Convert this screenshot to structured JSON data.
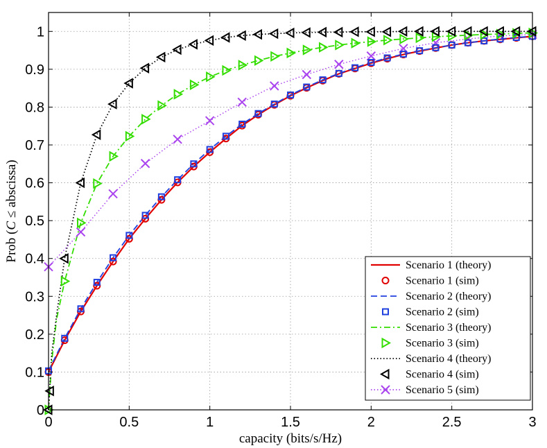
{
  "chart_data": {
    "type": "line",
    "title": "",
    "xlabel": "capacity (bits/s/Hz)",
    "ylabel_prefix": "Prob (",
    "ylabel_var": "C",
    "ylabel_suffix": " ≤ abscissa)",
    "xlim": [
      0,
      3
    ],
    "ylim": [
      0,
      1.05
    ],
    "xticks": [
      0,
      0.5,
      1,
      1.5,
      2,
      2.5,
      3
    ],
    "xtick_labels": [
      "0",
      "0.5",
      "1",
      "1.5",
      "2",
      "2.5",
      "3"
    ],
    "yticks": [
      0,
      0.1,
      0.2,
      0.3,
      0.4,
      0.5,
      0.6,
      0.7,
      0.8,
      0.9,
      1
    ],
    "ytick_labels": [
      "0",
      "0.1",
      "0.2",
      "0.3",
      "0.4",
      "0.5",
      "0.6",
      "0.7",
      "0.8",
      "0.9",
      "1"
    ],
    "grid": true,
    "legend_position": "bottom-right",
    "series": [
      {
        "name": "Scenario 1 (theory)",
        "color": "#e00000",
        "style": "solid",
        "marker": "none",
        "x": [
          0,
          0.1,
          0.2,
          0.3,
          0.4,
          0.5,
          0.6,
          0.7,
          0.8,
          0.9,
          1.0,
          1.1,
          1.2,
          1.3,
          1.4,
          1.5,
          1.6,
          1.7,
          1.8,
          1.9,
          2.0,
          2.1,
          2.2,
          2.3,
          2.4,
          2.5,
          2.6,
          2.7,
          2.8,
          2.9,
          3.0
        ],
        "y": [
          0.1,
          0.184,
          0.26,
          0.328,
          0.392,
          0.452,
          0.505,
          0.555,
          0.601,
          0.643,
          0.681,
          0.717,
          0.751,
          0.78,
          0.806,
          0.83,
          0.851,
          0.87,
          0.888,
          0.902,
          0.916,
          0.928,
          0.939,
          0.948,
          0.956,
          0.964,
          0.97,
          0.975,
          0.979,
          0.983,
          0.987
        ]
      },
      {
        "name": "Scenario 1 (sim)",
        "color": "#e00000",
        "style": "none",
        "marker": "circle",
        "x": [
          0,
          0.1,
          0.2,
          0.3,
          0.4,
          0.5,
          0.6,
          0.7,
          0.8,
          0.9,
          1.0,
          1.1,
          1.2,
          1.3,
          1.4,
          1.5,
          1.6,
          1.7,
          1.8,
          1.9,
          2.0,
          2.1,
          2.2,
          2.3,
          2.4,
          2.5,
          2.6,
          2.7,
          2.8,
          2.9,
          3.0
        ],
        "y": [
          0.1,
          0.184,
          0.26,
          0.328,
          0.392,
          0.452,
          0.505,
          0.555,
          0.601,
          0.643,
          0.681,
          0.717,
          0.751,
          0.78,
          0.806,
          0.83,
          0.851,
          0.87,
          0.888,
          0.902,
          0.916,
          0.928,
          0.939,
          0.948,
          0.956,
          0.964,
          0.97,
          0.975,
          0.979,
          0.983,
          0.987
        ]
      },
      {
        "name": "Scenario 2 (theory)",
        "color": "#1f3fdf",
        "style": "dashed",
        "marker": "none",
        "x": [
          0,
          0.1,
          0.2,
          0.3,
          0.4,
          0.5,
          0.6,
          0.7,
          0.8,
          0.9,
          1.0,
          1.1,
          1.2,
          1.3,
          1.4,
          1.5,
          1.6,
          1.7,
          1.8,
          1.9,
          2.0,
          2.1,
          2.2,
          2.3,
          2.4,
          2.5,
          2.6,
          2.7,
          2.8,
          2.9,
          3.0
        ],
        "y": [
          0.103,
          0.189,
          0.267,
          0.337,
          0.402,
          0.461,
          0.514,
          0.563,
          0.608,
          0.65,
          0.688,
          0.723,
          0.755,
          0.783,
          0.808,
          0.832,
          0.853,
          0.872,
          0.889,
          0.904,
          0.918,
          0.93,
          0.94,
          0.949,
          0.957,
          0.964,
          0.97,
          0.975,
          0.98,
          0.984,
          0.987
        ]
      },
      {
        "name": "Scenario 2 (sim)",
        "color": "#1f3fdf",
        "style": "none",
        "marker": "square",
        "x": [
          0,
          0.1,
          0.2,
          0.3,
          0.4,
          0.5,
          0.6,
          0.7,
          0.8,
          0.9,
          1.0,
          1.1,
          1.2,
          1.3,
          1.4,
          1.5,
          1.6,
          1.7,
          1.8,
          1.9,
          2.0,
          2.1,
          2.2,
          2.3,
          2.4,
          2.5,
          2.6,
          2.7,
          2.8,
          2.9,
          3.0
        ],
        "y": [
          0.103,
          0.189,
          0.267,
          0.337,
          0.402,
          0.461,
          0.514,
          0.563,
          0.608,
          0.65,
          0.688,
          0.723,
          0.755,
          0.783,
          0.808,
          0.832,
          0.853,
          0.872,
          0.889,
          0.904,
          0.918,
          0.93,
          0.94,
          0.949,
          0.957,
          0.964,
          0.97,
          0.975,
          0.98,
          0.984,
          0.987
        ]
      },
      {
        "name": "Scenario 3 (theory)",
        "color": "#33dd00",
        "style": "dashdot",
        "marker": "none",
        "x": [
          0,
          0.02,
          0.05,
          0.1,
          0.2,
          0.3,
          0.4,
          0.5,
          0.6,
          0.7,
          0.8,
          0.9,
          1.0,
          1.1,
          1.2,
          1.3,
          1.4,
          1.5,
          1.6,
          1.7,
          1.8,
          1.9,
          2.0,
          2.1,
          2.2,
          2.3,
          2.4,
          2.5,
          2.6,
          2.7,
          2.8,
          2.9,
          3.0
        ],
        "y": [
          0.0,
          0.13,
          0.24,
          0.34,
          0.494,
          0.598,
          0.67,
          0.723,
          0.768,
          0.804,
          0.834,
          0.859,
          0.88,
          0.897,
          0.911,
          0.923,
          0.934,
          0.943,
          0.951,
          0.958,
          0.964,
          0.969,
          0.973,
          0.977,
          0.98,
          0.983,
          0.986,
          0.988,
          0.99,
          0.992,
          0.993,
          0.995,
          0.996
        ]
      },
      {
        "name": "Scenario 3 (sim)",
        "color": "#33dd00",
        "style": "none",
        "marker": "triangle-right",
        "x": [
          0,
          0.1,
          0.2,
          0.3,
          0.4,
          0.5,
          0.6,
          0.7,
          0.8,
          0.9,
          1.0,
          1.1,
          1.2,
          1.3,
          1.4,
          1.5,
          1.6,
          1.7,
          1.8,
          1.9,
          2.0,
          2.1,
          2.2,
          2.3,
          2.4,
          2.5,
          2.6,
          2.7,
          2.8,
          2.9,
          3.0
        ],
        "y": [
          0.0,
          0.34,
          0.494,
          0.598,
          0.67,
          0.723,
          0.768,
          0.804,
          0.834,
          0.859,
          0.88,
          0.897,
          0.911,
          0.923,
          0.934,
          0.943,
          0.951,
          0.958,
          0.964,
          0.969,
          0.973,
          0.977,
          0.98,
          0.983,
          0.986,
          0.988,
          0.99,
          0.992,
          0.993,
          0.995,
          0.996
        ]
      },
      {
        "name": "Scenario 4 (theory)",
        "color": "#000000",
        "style": "dotted",
        "marker": "none",
        "x": [
          0,
          0.02,
          0.05,
          0.1,
          0.2,
          0.3,
          0.4,
          0.5,
          0.6,
          0.7,
          0.8,
          0.9,
          1.0,
          1.1,
          1.2,
          1.3,
          1.4,
          1.5,
          1.6,
          1.7,
          1.8,
          1.9,
          2.0,
          2.1,
          2.2,
          2.3,
          2.4,
          2.5,
          2.6,
          2.7,
          2.8,
          2.9,
          3.0
        ],
        "y": [
          0.0,
          0.15,
          0.25,
          0.4,
          0.6,
          0.727,
          0.808,
          0.863,
          0.903,
          0.932,
          0.952,
          0.966,
          0.976,
          0.984,
          0.989,
          0.992,
          0.994,
          0.996,
          0.997,
          0.998,
          0.998,
          0.999,
          0.999,
          0.999,
          1.0,
          1.0,
          1.0,
          1.0,
          1.0,
          1.0,
          1.0,
          1.0,
          1.0
        ]
      },
      {
        "name": "Scenario 4 (sim)",
        "color": "#000000",
        "style": "none",
        "marker": "triangle-left",
        "x": [
          0,
          0.01,
          0.1,
          0.2,
          0.3,
          0.4,
          0.5,
          0.6,
          0.7,
          0.8,
          0.9,
          1.0,
          1.1,
          1.2,
          1.3,
          1.4,
          1.5,
          1.6,
          1.7,
          1.8,
          1.9,
          2.0,
          2.1,
          2.2,
          2.3,
          2.4,
          2.5,
          2.6,
          2.7,
          2.8,
          2.9,
          3.0
        ],
        "y": [
          0.0,
          0.05,
          0.4,
          0.6,
          0.727,
          0.808,
          0.863,
          0.903,
          0.932,
          0.952,
          0.966,
          0.976,
          0.984,
          0.989,
          0.992,
          0.994,
          0.996,
          0.997,
          0.998,
          0.998,
          0.999,
          0.999,
          0.999,
          1.0,
          1.0,
          1.0,
          1.0,
          1.0,
          1.0,
          1.0,
          1.0,
          1.0
        ]
      },
      {
        "name": "Scenario 5 (sim)",
        "color": "#aa44ee",
        "style": "dotted",
        "marker": "x",
        "x": [
          0,
          0.2,
          0.4,
          0.6,
          0.8,
          1.0,
          1.2,
          1.4,
          1.6,
          1.8,
          2.0,
          2.2,
          2.4,
          2.6,
          2.8,
          3.0
        ],
        "y": [
          0.378,
          0.47,
          0.571,
          0.651,
          0.715,
          0.764,
          0.813,
          0.856,
          0.886,
          0.913,
          0.935,
          0.955,
          0.97,
          0.98,
          0.988,
          0.992
        ]
      }
    ]
  }
}
